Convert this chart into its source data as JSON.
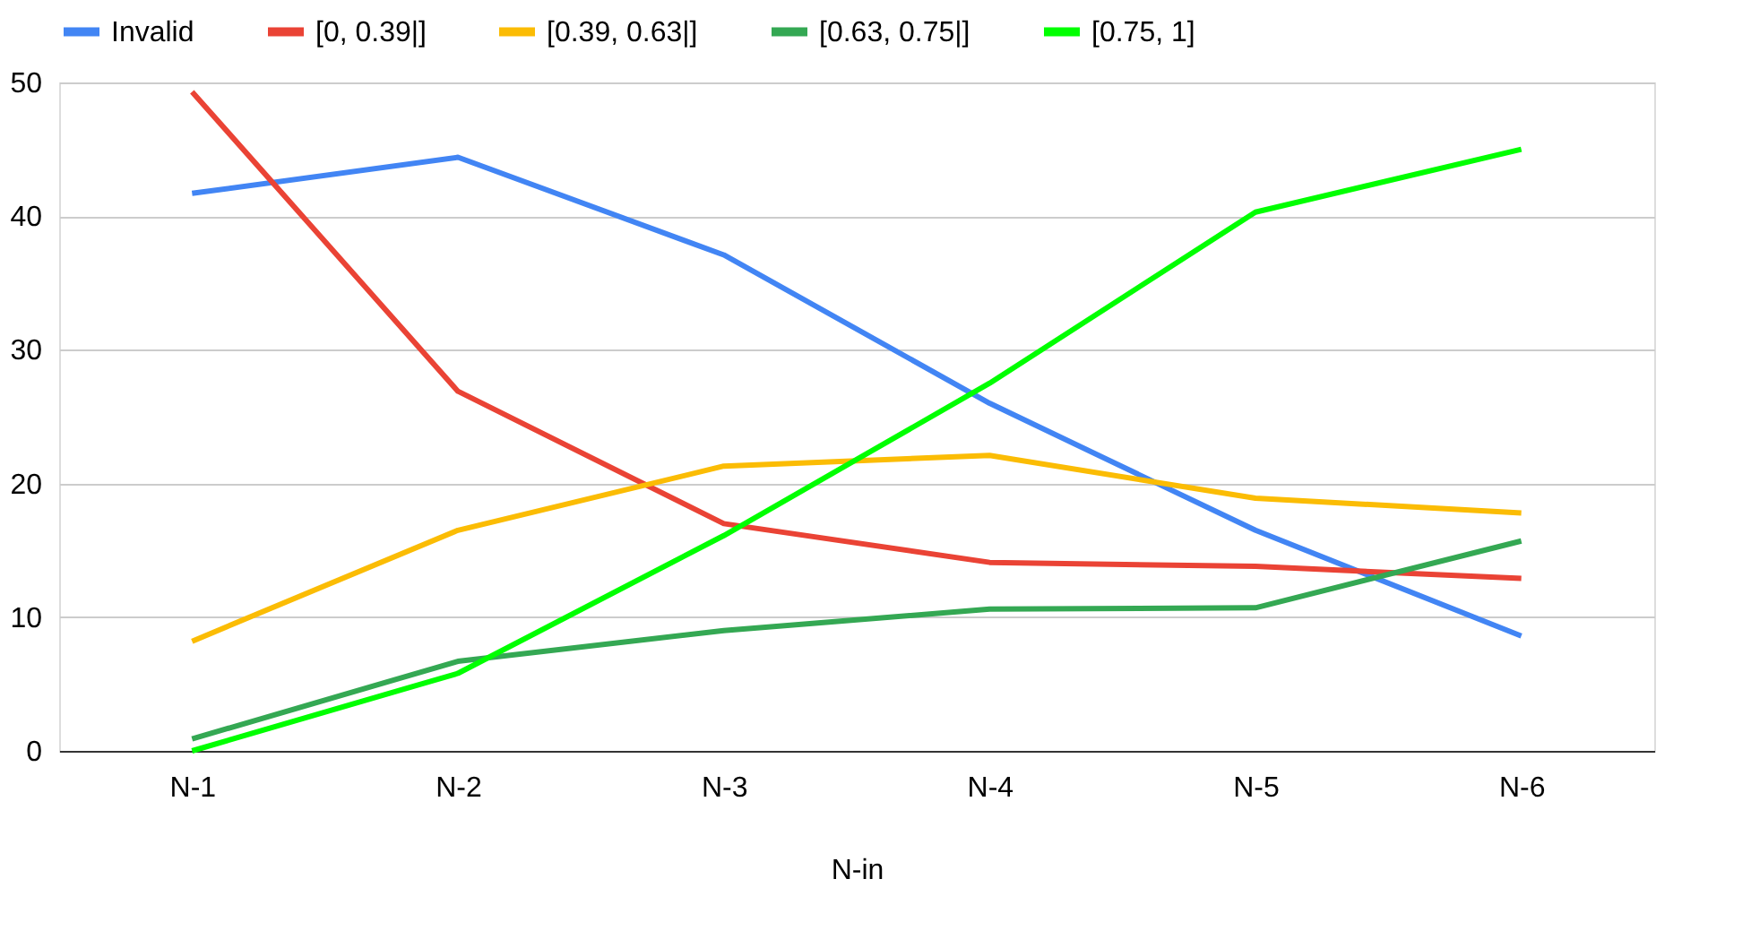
{
  "chart_data": {
    "type": "line",
    "xlabel": "N-in",
    "categories": [
      "N-1",
      "N-2",
      "N-3",
      "N-4",
      "N-5",
      "N-6"
    ],
    "series": [
      {
        "name": "Invalid",
        "color": "#4285f4",
        "values": [
          41.7,
          44.4,
          37.1,
          26.0,
          16.5,
          8.6
        ]
      },
      {
        "name": "[0, 0.39|]",
        "color": "#ea4335",
        "values": [
          49.3,
          26.9,
          17.0,
          14.1,
          13.8,
          12.9
        ]
      },
      {
        "name": "[0.39, 0.63|]",
        "color": "#fbbc04",
        "values": [
          8.2,
          16.5,
          21.3,
          22.1,
          18.9,
          17.8
        ]
      },
      {
        "name": "[0.63, 0.75|]",
        "color": "#34a853",
        "values": [
          0.9,
          6.7,
          9.0,
          10.6,
          10.7,
          15.7
        ]
      },
      {
        "name": "[0.75, 1]",
        "color": "#00ff00",
        "values": [
          0,
          5.8,
          16.1,
          27.5,
          40.3,
          45.0
        ]
      }
    ],
    "ylim": [
      0,
      50
    ],
    "yticks": [
      0,
      10,
      20,
      30,
      40,
      50
    ],
    "grid": "y",
    "legend": "top",
    "marker": "none",
    "line_style": "solid"
  }
}
